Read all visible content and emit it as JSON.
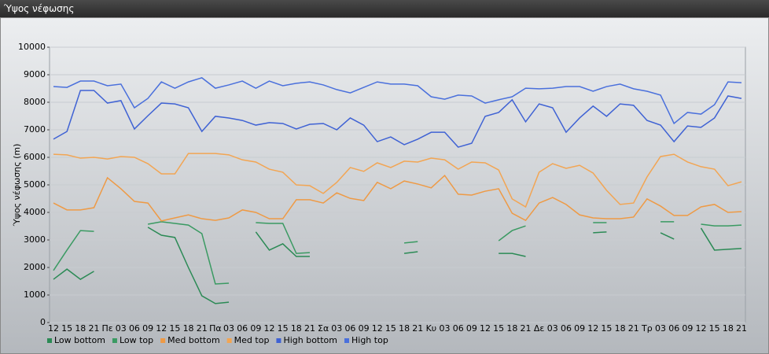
{
  "window": {
    "title": "Ύψος νέφωσης"
  },
  "chart_data": {
    "type": "line",
    "ylabel": "Ύψος νέφωσης (m)",
    "categories": [
      "12",
      "15",
      "18",
      "21",
      "Πε",
      "03",
      "06",
      "09",
      "12",
      "15",
      "18",
      "21",
      "Πα",
      "03",
      "06",
      "09",
      "12",
      "15",
      "18",
      "21",
      "Σα",
      "03",
      "06",
      "09",
      "12",
      "15",
      "18",
      "21",
      "Κυ",
      "03",
      "06",
      "09",
      "12",
      "15",
      "18",
      "21",
      "Δε",
      "03",
      "06",
      "09",
      "12",
      "15",
      "18",
      "21",
      "Τρ",
      "03",
      "06",
      "09",
      "12",
      "15",
      "18",
      "21"
    ],
    "ylim": [
      0,
      10000
    ],
    "yticks": [
      0,
      1000,
      2000,
      3000,
      4000,
      5000,
      6000,
      7000,
      8000,
      9000,
      10000
    ],
    "grid": true,
    "legend": "bottom-left",
    "series": [
      {
        "name": "Low bottom",
        "color": "#2b8a55",
        "values": [
          1570,
          1940,
          1570,
          1860,
          null,
          null,
          null,
          3460,
          3170,
          3090,
          2000,
          970,
          690,
          740,
          null,
          3290,
          2630,
          2860,
          2400,
          2400,
          null,
          null,
          null,
          null,
          null,
          null,
          2510,
          2570,
          null,
          null,
          null,
          null,
          null,
          2510,
          2510,
          2400,
          null,
          null,
          null,
          null,
          3260,
          3290,
          null,
          null,
          null,
          3260,
          3030,
          null,
          3430,
          2630,
          2660,
          2690
        ]
      },
      {
        "name": "Low top",
        "color": "#3a9a62",
        "values": [
          1890,
          2630,
          3340,
          3310,
          null,
          null,
          null,
          3570,
          3660,
          3600,
          3540,
          3230,
          1400,
          1430,
          null,
          3630,
          3600,
          3600,
          2510,
          2540,
          null,
          null,
          null,
          null,
          null,
          null,
          2890,
          2940,
          null,
          null,
          null,
          null,
          null,
          2970,
          3340,
          3510,
          null,
          null,
          null,
          null,
          3630,
          3630,
          null,
          null,
          null,
          3660,
          3660,
          null,
          3570,
          3510,
          3510,
          3540
        ]
      },
      {
        "name": "Med bottom",
        "color": "#ee9a45",
        "values": [
          4340,
          4090,
          4090,
          4170,
          5260,
          4860,
          4400,
          4340,
          3690,
          3800,
          3910,
          3770,
          3710,
          3800,
          4090,
          4000,
          3770,
          3770,
          4460,
          4460,
          4340,
          4710,
          4510,
          4430,
          5090,
          4860,
          5140,
          5030,
          4890,
          5340,
          4660,
          4630,
          4770,
          4860,
          3970,
          3710,
          4340,
          4540,
          4290,
          3910,
          3800,
          3770,
          3770,
          3830,
          4490,
          4230,
          3890,
          3890,
          4200,
          4290,
          4000,
          4030
        ]
      },
      {
        "name": "Med top",
        "color": "#f2a553",
        "values": [
          6110,
          6090,
          5970,
          6000,
          5940,
          6030,
          6000,
          5770,
          5400,
          5400,
          6140,
          6140,
          6140,
          6090,
          5910,
          5830,
          5570,
          5460,
          5000,
          4970,
          4690,
          5090,
          5630,
          5490,
          5800,
          5630,
          5860,
          5830,
          5970,
          5910,
          5570,
          5830,
          5800,
          5540,
          4490,
          4200,
          5460,
          5770,
          5600,
          5710,
          5430,
          4800,
          4290,
          4340,
          5290,
          6030,
          6110,
          5830,
          5660,
          5570,
          4970,
          5110
        ]
      },
      {
        "name": "High bottom",
        "color": "#3f62d4",
        "values": [
          6660,
          6940,
          8430,
          8430,
          7970,
          8060,
          7030,
          7510,
          7970,
          7940,
          7800,
          6940,
          7490,
          7430,
          7340,
          7170,
          7260,
          7230,
          7030,
          7200,
          7230,
          7000,
          7430,
          7170,
          6570,
          6740,
          6460,
          6660,
          6910,
          6910,
          6370,
          6510,
          7490,
          7630,
          8090,
          7290,
          7940,
          7800,
          6910,
          7430,
          7860,
          7490,
          7940,
          7890,
          7340,
          7170,
          6570,
          7140,
          7090,
          7430,
          8230,
          8140
        ]
      },
      {
        "name": "High top",
        "color": "#4a70dc",
        "values": [
          8570,
          8540,
          8770,
          8770,
          8600,
          8660,
          7800,
          8140,
          8740,
          8510,
          8740,
          8890,
          8510,
          8630,
          8770,
          8510,
          8770,
          8600,
          8690,
          8740,
          8630,
          8460,
          8340,
          8540,
          8740,
          8660,
          8660,
          8600,
          8200,
          8110,
          8260,
          8230,
          7970,
          8090,
          8200,
          8510,
          8490,
          8510,
          8570,
          8570,
          8400,
          8570,
          8660,
          8490,
          8400,
          8260,
          7230,
          7630,
          7570,
          7910,
          8740,
          8710
        ]
      }
    ]
  }
}
